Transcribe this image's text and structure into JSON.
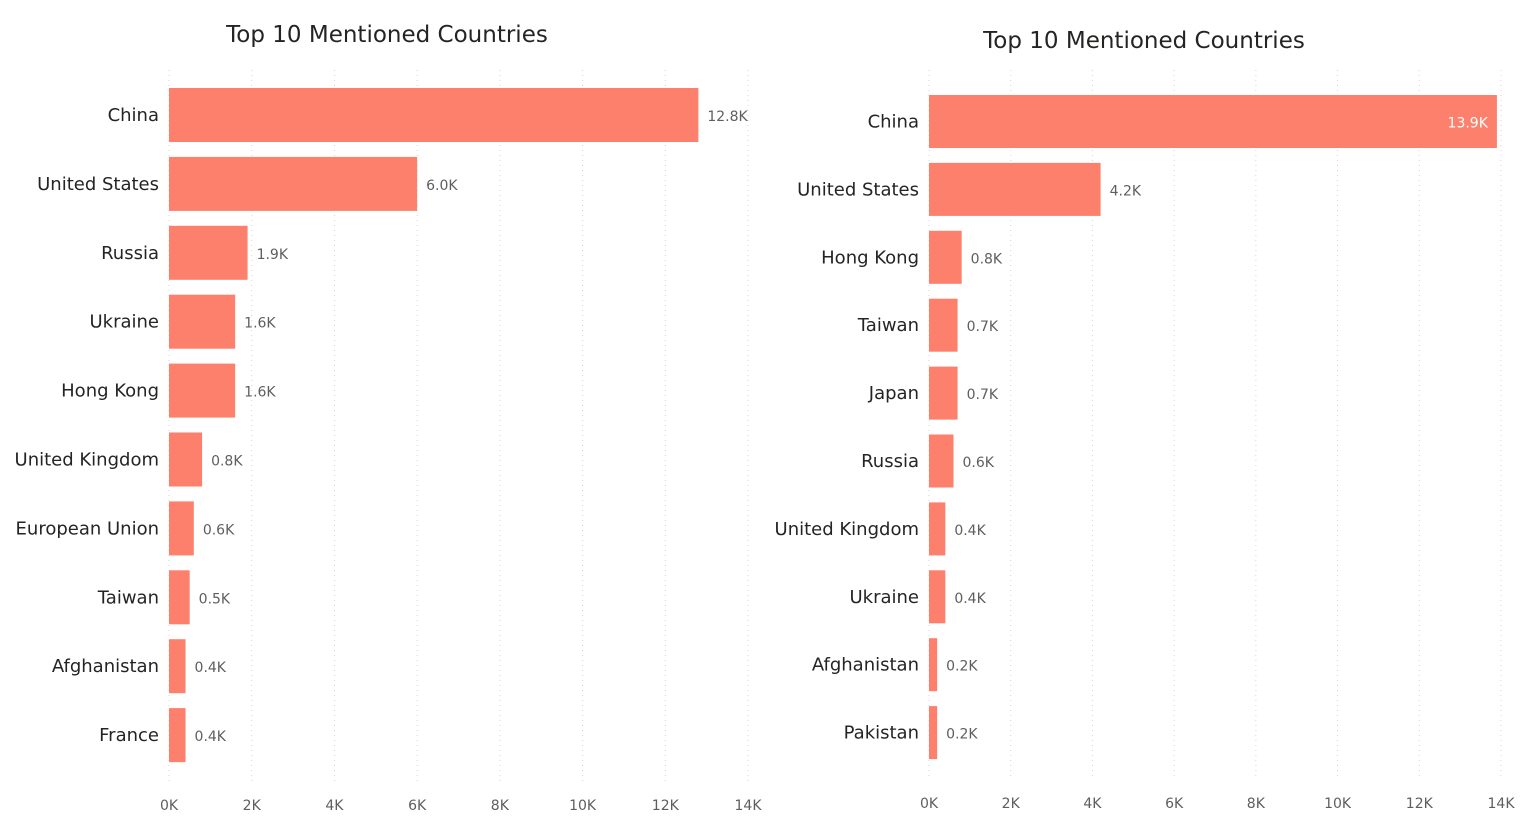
{
  "chart_data": [
    {
      "type": "bar",
      "orientation": "horizontal",
      "title": "Top 10 Mentioned Countries",
      "categories": [
        "China",
        "United States",
        "Russia",
        "Ukraine",
        "Hong Kong",
        "United Kingdom",
        "European Union",
        "Taiwan",
        "Afghanistan",
        "France"
      ],
      "values": [
        12800,
        6000,
        1900,
        1600,
        1600,
        800,
        600,
        500,
        400,
        400
      ],
      "data_labels": [
        "12.8K",
        "6.0K",
        "1.9K",
        "1.6K",
        "1.6K",
        "0.8K",
        "0.6K",
        "0.5K",
        "0.4K",
        "0.4K"
      ],
      "xticks": [
        "0K",
        "2K",
        "4K",
        "6K",
        "8K",
        "10K",
        "12K",
        "14K"
      ],
      "xlim": [
        0,
        14000
      ],
      "grid": true,
      "color": "#fd806c"
    },
    {
      "type": "bar",
      "orientation": "horizontal",
      "title": "Top 10 Mentioned Countries",
      "categories": [
        "China",
        "United States",
        "Hong Kong",
        "Taiwan",
        "Japan",
        "Russia",
        "United Kingdom",
        "Ukraine",
        "Afghanistan",
        "Pakistan"
      ],
      "values": [
        13900,
        4200,
        800,
        700,
        700,
        600,
        400,
        400,
        200,
        200
      ],
      "data_labels": [
        "13.9K",
        "4.2K",
        "0.8K",
        "0.7K",
        "0.7K",
        "0.6K",
        "0.4K",
        "0.4K",
        "0.2K",
        "0.2K"
      ],
      "xticks": [
        "0K",
        "2K",
        "4K",
        "6K",
        "8K",
        "10K",
        "12K",
        "14K"
      ],
      "xlim": [
        0,
        14000
      ],
      "grid": true,
      "color": "#fd806c"
    }
  ]
}
